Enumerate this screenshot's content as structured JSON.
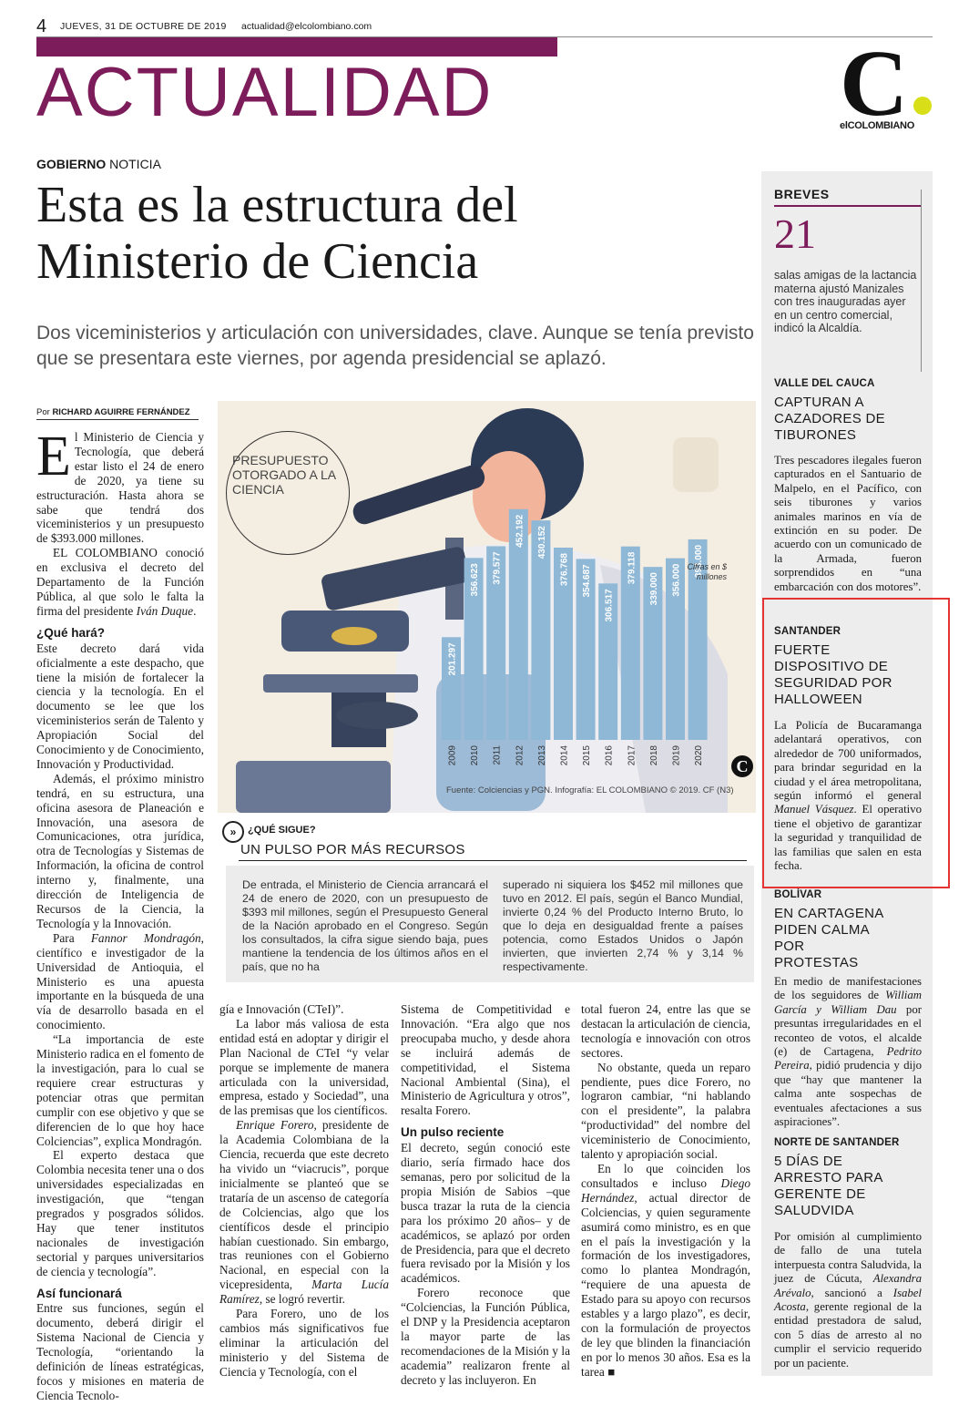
{
  "header": {
    "page_number": "4",
    "date": "JUEVES, 31 DE OCTUBRE DE 2019",
    "email": "actualidad@elcolombiano.com",
    "section": "ACTUALIDAD",
    "logo_letter": "C",
    "logo_text": "elCOLOMBIANO",
    "accent_color": "#7d1c5a",
    "logo_dot_color": "#d8de18"
  },
  "article": {
    "section_label_bold": "GOBIERNO",
    "section_label_rest": " NOTICIA",
    "headline_line1": "Esta es la estructura del",
    "headline_line2": "Ministerio de Ciencia",
    "subtitle": "Dos viceministerios y articulación con universidades, clave. Aunque se tenía previsto que se presentara este viernes, por agenda presidencial se aplazó.",
    "byline_prefix": "Por ",
    "byline_author": "RICHARD AGUIRRE FERNÁNDEZ",
    "dropcap": "E",
    "col1": {
      "p1": "l Ministerio de Ciencia y Tecnología, que deberá estar listo el 24 de enero de 2020, ya tiene su estructuración. Hasta ahora se sabe que tendrá dos viceministerios y un presupuesto de $393.000 millones.",
      "p2_a": "EL COLOMBIANO conoció en exclusiva el decreto del Departamento de la Función Pública, al que solo le falta la firma del presidente ",
      "p2_name": "Iván Duque",
      "p2_b": ".",
      "subhead1": "¿Qué hará?",
      "p3": "Este decreto dará vida oficialmente a este despacho, que tiene la misión de fortalecer la ciencia y la tecnología. En el documento se lee que los viceministerios serán de Talento y Apropiación Social del Conocimiento y de Conocimiento, Innovación y Productividad.",
      "p4": "Además, el próximo ministro tendrá, en su estructura, una oficina asesora de Planeación e Innovación, una asesora de Comunicaciones, otra jurídica, otra de Tecnologías y Sistemas de Información, la oficina de control interno y, finalmente, una dirección de Inteligencia de Recursos de la Ciencia, la Tecnología y la Innovación.",
      "p5_a": "Para ",
      "p5_name": "Fannor Mondragón",
      "p5_b": ", científico e investigador de la Universidad de Antioquia, el Ministerio es una apuesta importante en la búsqueda de una vía de desarrollo basada en el conocimiento.",
      "p6": "“La importancia de este Ministerio radica en el fomento de la investigación, para lo cual se requiere crear estructuras y potenciar otras que permitan cumplir con ese objetivo y que se diferencien de lo que hoy hace Colciencias”, explica Mondragón.",
      "p7": "El experto destaca que Colombia necesita tener una o dos universidades especializadas en investigación, que “tengan pregrados y posgrados sólidos. Hay que tener institutos nacionales de investigación sectorial y parques universitarios de ciencia y tecnología”.",
      "subhead2": "Así funcionará",
      "p8": "Entre sus funciones, según el documento, deberá dirigir el Sistema Nacional de Ciencia y Tecnología, “orientando la definición de líneas estratégicas, focos y misiones en materia de Ciencia Tecnolo-"
    },
    "col2": {
      "p1": "gía e Innovación (CTeI)”.",
      "p2": "La labor más valiosa de esta entidad está en adoptar y dirigir el Plan Nacional de CTeI “y velar porque se implemente de manera articulada con la universidad, empresa, estado y Sociedad”, una de las premisas que los científicos.",
      "p3_name": "Enrique Forero",
      "p3_b": ", presidente de la Academia Colombiana de la Ciencia, recuerda que este decreto ha vivido un “viacrucis”, porque inicialmente se planteó que se trataría de un ascenso de categoría de Colciencias, algo que los científicos desde el principio habían cuestionado. Sin embargo, tras reuniones con el Gobierno Nacional, en especial con la vicepresidenta, ",
      "p3_name2": "Marta Lucía Ramírez",
      "p3_c": ", se logró revertir.",
      "p4": "Para Forero, uno de los cambios más significativos fue eliminar la articulación del ministerio y del Sistema de Ciencia y Tecnología, con el"
    },
    "col3": {
      "p1": "Sistema de Competitividad e Innovación. “Era algo que nos preocupaba mucho, y desde ahora se incluirá además de competitividad, el Sistema Nacional Ambiental (Sina), el Ministerio de Agricultura y otros”, resalta Forero.",
      "subhead": "Un pulso reciente",
      "p2": "El decreto, según conoció este diario, sería firmado hace dos semanas, pero por solicitud de la propia Misión de Sabios –que busca trazar la ruta de la ciencia para los próximo 20 años– y de académicos, se aplazó por orden de Presidencia, para que el decreto fuera revisado por la Misión y los académicos.",
      "p3": "Forero reconoce que “Colciencias, la Función Pública, el DNP y la Presidencia aceptaron la mayor parte de las recomendaciones de la Misión y la academia” realizaron frente al decreto y las incluyeron. En"
    },
    "col4": {
      "p1": "total fueron 24, entre las que se destacan la articulación de ciencia, tecnología e innovación con otros sectores.",
      "p2": "No obstante, queda un reparo pendiente, pues dice Forero, no lograron cambiar, “ni hablando con el presidente”, la palabra “productividad” del nombre del viceministerio de Conocimiento, talento y apropiación social.",
      "p3_a": "En lo que coinciden los consultados e incluso ",
      "p3_name": "Diego Hernández",
      "p3_b": ", actual director de Colciencias, y quien seguramente asumirá como ministro, es en que en el país la investigación y la formación de los investigadores, como lo plantea Mondragón, “requiere de una apuesta de Estado para su apoyo con recursos estables y a largo plazo”, es decir, con la formulación de proyectos de ley que blinden la financiación en por lo menos 30 años. Esa es la tarea ■"
    }
  },
  "infographic": {
    "title": "PRESUPUESTO OTORGADO A LA CIENCIA",
    "units": "Cifras en $ millones",
    "source": "Fuente: Colciencias y PGN. Infografía: EL COLOMBIANO © 2019. CF (N3)",
    "badge": "C",
    "bar_color": "#8fb8d6"
  },
  "chart_data": {
    "type": "bar",
    "title": "PRESUPUESTO OTORGADO A LA CIENCIA",
    "ylabel": "Cifras en $ millones",
    "categories": [
      "2009",
      "2010",
      "2011",
      "2012",
      "2013",
      "2014",
      "2015",
      "2016",
      "2017",
      "2018",
      "2019",
      "2020"
    ],
    "values": [
      201297,
      356623,
      379577,
      452192,
      430152,
      376768,
      354687,
      306517,
      379118,
      339000,
      356000,
      393000
    ],
    "value_labels": [
      "201.297",
      "356.623",
      "379.577",
      "452.192",
      "430.152",
      "376.768",
      "354.687",
      "306.517",
      "379.118",
      "339.000",
      "356.000",
      "393.000"
    ],
    "ylim": [
      0,
      500000
    ]
  },
  "que_sigue": {
    "icon": "»",
    "kicker": "¿QUÉ SIGUE?",
    "title": "UN PULSO POR MÁS RECURSOS",
    "col1": "De entrada, el Ministerio de Ciencia arrancará el 24 de enero de 2020, con un presupuesto de $393 mil millones, según el Presupuesto General de la Nación aprobado en el Congreso. Según los consultados, la cifra sigue siendo baja, pues mantiene la tendencia de los últimos años en el país, que no ha",
    "col2": "superado ni siquiera los $452 mil millones que tuvo en 2012. El país, según el Banco Mundial, invierte 0,24 % del Producto Interno Bruto, lo que lo deja en desigualdad frente a países potencia, como Estados Unidos o Japón invierten, que invierten 2,74 % y 3,14 % respectivamente."
  },
  "sidebar": {
    "label": "BREVES",
    "number": "21",
    "number_text": "salas amigas de la lactancia materna ajustó Manizales con tres inauguradas ayer en un centro comercial, indicó la Alcaldía.",
    "items": [
      {
        "kicker": "VALLE DEL CAUCA",
        "title": "CAPTURAN A CAZADORES DE TIBURONES",
        "body": "Tres pescadores ilegales fueron capturados en el Santuario de Malpelo, en el Pacífico, con seis tiburones y varios animales marinos en vía de extinción en su poder. De acuerdo con un comunicado de la Armada, fueron sorprendidos en “una embarcación con dos motores”."
      },
      {
        "kicker": "SANTANDER",
        "title": "FUERTE DISPOSITIVO DE SEGURIDAD POR HALLOWEEN",
        "body_a": "La Policía de Bucaramanga adelantará operativos, con alrededor de 700 uniformados, para brindar seguridad en la ciudad y el área metropolitana, según informó el general ",
        "body_name": "Manuel Vásquez",
        "body_b": ". El operativo tiene el objetivo de garantizar la seguridad y tranquilidad de las familias que salen en esta fecha."
      },
      {
        "kicker": "BOLÍVAR",
        "title": "EN CARTAGENA PIDEN CALMA POR PROTESTAS",
        "body_a": "En medio de manifestaciones de los seguidores de ",
        "body_name": "William García y William Dau",
        "body_b": " por presuntas irregularidades en el reconteo de votos, el alcalde (e) de Cartagena, ",
        "body_name2": "Pedrito Pereira",
        "body_c": ", pidió prudencia y dijo que “hay que mantener la calma ante sospechas de eventuales afectaciones a sus aspiraciones”."
      },
      {
        "kicker": "NORTE DE SANTANDER",
        "title": "5 DÍAS DE ARRESTO PARA GERENTE DE SALUDVIDA",
        "body_a": "Por omisión al cumplimiento de fallo de una tutela interpuesta contra Saludvida, la juez de Cúcuta, ",
        "body_name": "Alexandra Arévalo",
        "body_b": ", sancionó a ",
        "body_name2": "Isabel Acosta",
        "body_c": ", gerente regional de la entidad prestadora de salud, con 5 días de arresto al no cumplir el servicio requerido por un paciente."
      }
    ]
  }
}
